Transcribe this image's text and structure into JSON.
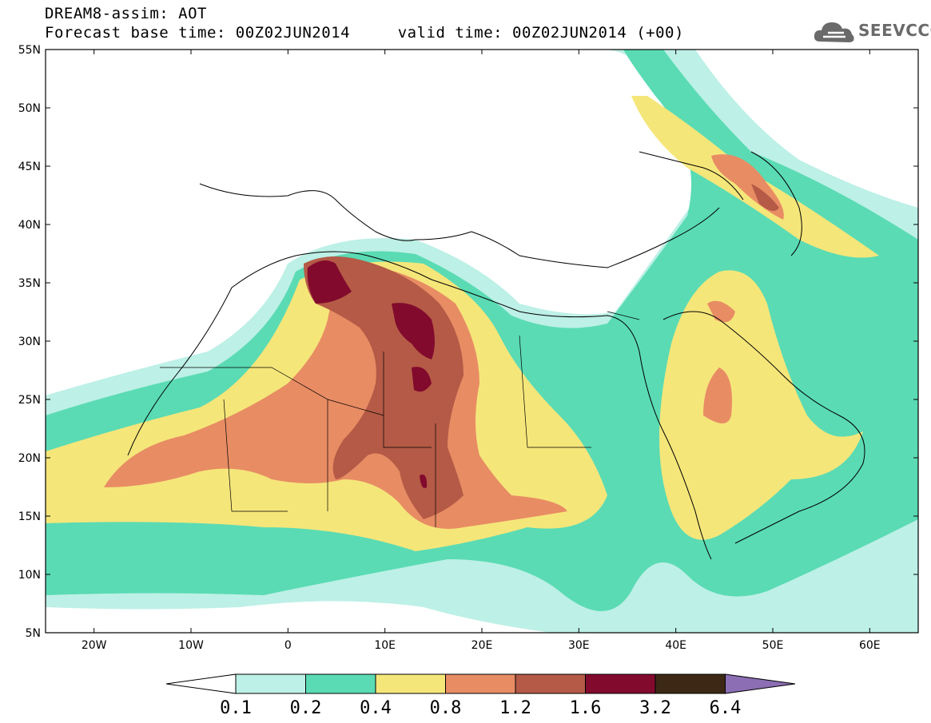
{
  "title_line1": "DREAM8-assim: AOT",
  "title_line2": "Forecast base time: 00Z02JUN2014     valid time: 00Z02JUN2014 (+00)",
  "logo_text": "SEEVCCC",
  "lat_ticks": [
    "55N",
    "50N",
    "45N",
    "40N",
    "35N",
    "30N",
    "25N",
    "20N",
    "15N",
    "10N",
    "5N"
  ],
  "lon_ticks": [
    "20W",
    "10W",
    "0",
    "10E",
    "20E",
    "30E",
    "40E",
    "50E",
    "60E"
  ],
  "colorbar": {
    "labels": [
      "0.1",
      "0.2",
      "0.4",
      "0.8",
      "1.2",
      "1.6",
      "3.2",
      "6.4"
    ],
    "colors": [
      "#ffffff",
      "#bdf0e6",
      "#5adbb4",
      "#f5e67a",
      "#e88c64",
      "#b45a46",
      "#820a2d",
      "#3c2814",
      "#8c6eb4"
    ]
  },
  "map_data": {
    "variable": "AOT",
    "lon_range": [
      -25,
      65
    ],
    "lat_range": [
      5,
      55
    ],
    "max_region": "Algeria / Libya (~35N 5E, ~30N 14E)"
  }
}
